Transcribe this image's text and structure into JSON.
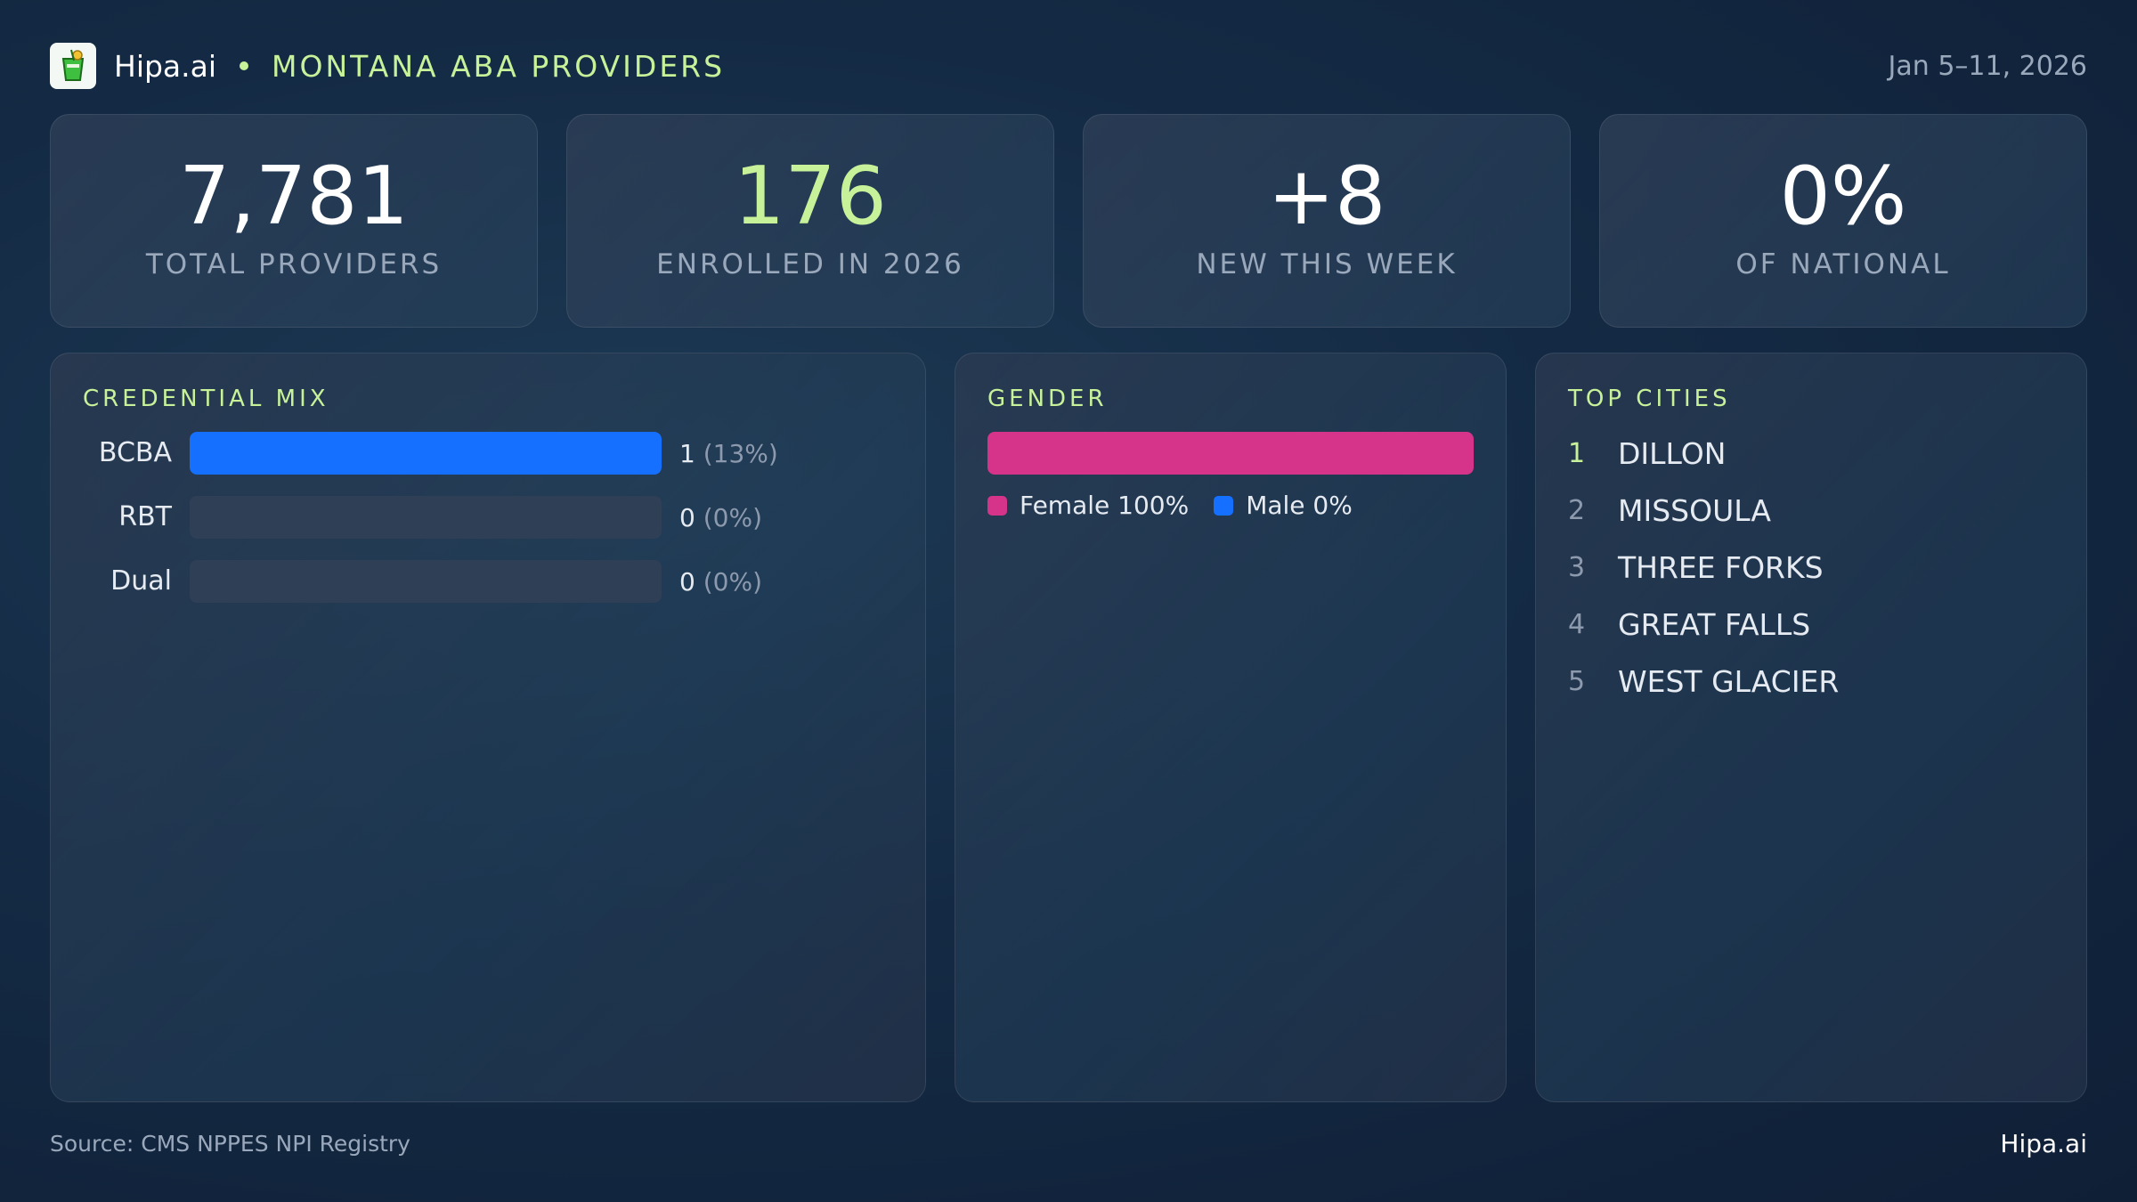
{
  "header": {
    "brand": "Hipa.ai",
    "title": "MONTANA ABA PROVIDERS",
    "date_range": "Jan 5–11, 2026",
    "logo_icon": "cocktail-glass-icon"
  },
  "stats": [
    {
      "value": "7,781",
      "label": "TOTAL PROVIDERS",
      "accent": false
    },
    {
      "value": "176",
      "label": "ENROLLED IN 2026",
      "accent": true
    },
    {
      "value": "+8",
      "label": "NEW THIS WEEK",
      "accent": false
    },
    {
      "value": "0%",
      "label": "OF NATIONAL",
      "accent": false
    }
  ],
  "credential_mix": {
    "title": "CREDENTIAL MIX",
    "rows": [
      {
        "name": "BCBA",
        "count": "1",
        "pct": "(13%)",
        "fill": 1.0
      },
      {
        "name": "RBT",
        "count": "0",
        "pct": "(0%)",
        "fill": 0
      },
      {
        "name": "Dual",
        "count": "0",
        "pct": "(0%)",
        "fill": 0
      }
    ]
  },
  "gender": {
    "title": "GENDER",
    "female_pct": 100,
    "male_pct": 0,
    "female_label": "Female 100%",
    "male_label": "Male 0%"
  },
  "top_cities": {
    "title": "TOP CITIES",
    "items": [
      {
        "rank": "1",
        "name": "DILLON"
      },
      {
        "rank": "2",
        "name": "MISSOULA"
      },
      {
        "rank": "3",
        "name": "THREE FORKS"
      },
      {
        "rank": "4",
        "name": "GREAT FALLS"
      },
      {
        "rank": "5",
        "name": "WEST GLACIER"
      }
    ]
  },
  "footer": {
    "source": "Source: CMS NPPES NPI Registry",
    "brand": "Hipa.ai"
  },
  "colors": {
    "accent": "#c8f29a",
    "bcba": "#1570ff",
    "female": "#d6348a",
    "male": "#1570ff"
  }
}
